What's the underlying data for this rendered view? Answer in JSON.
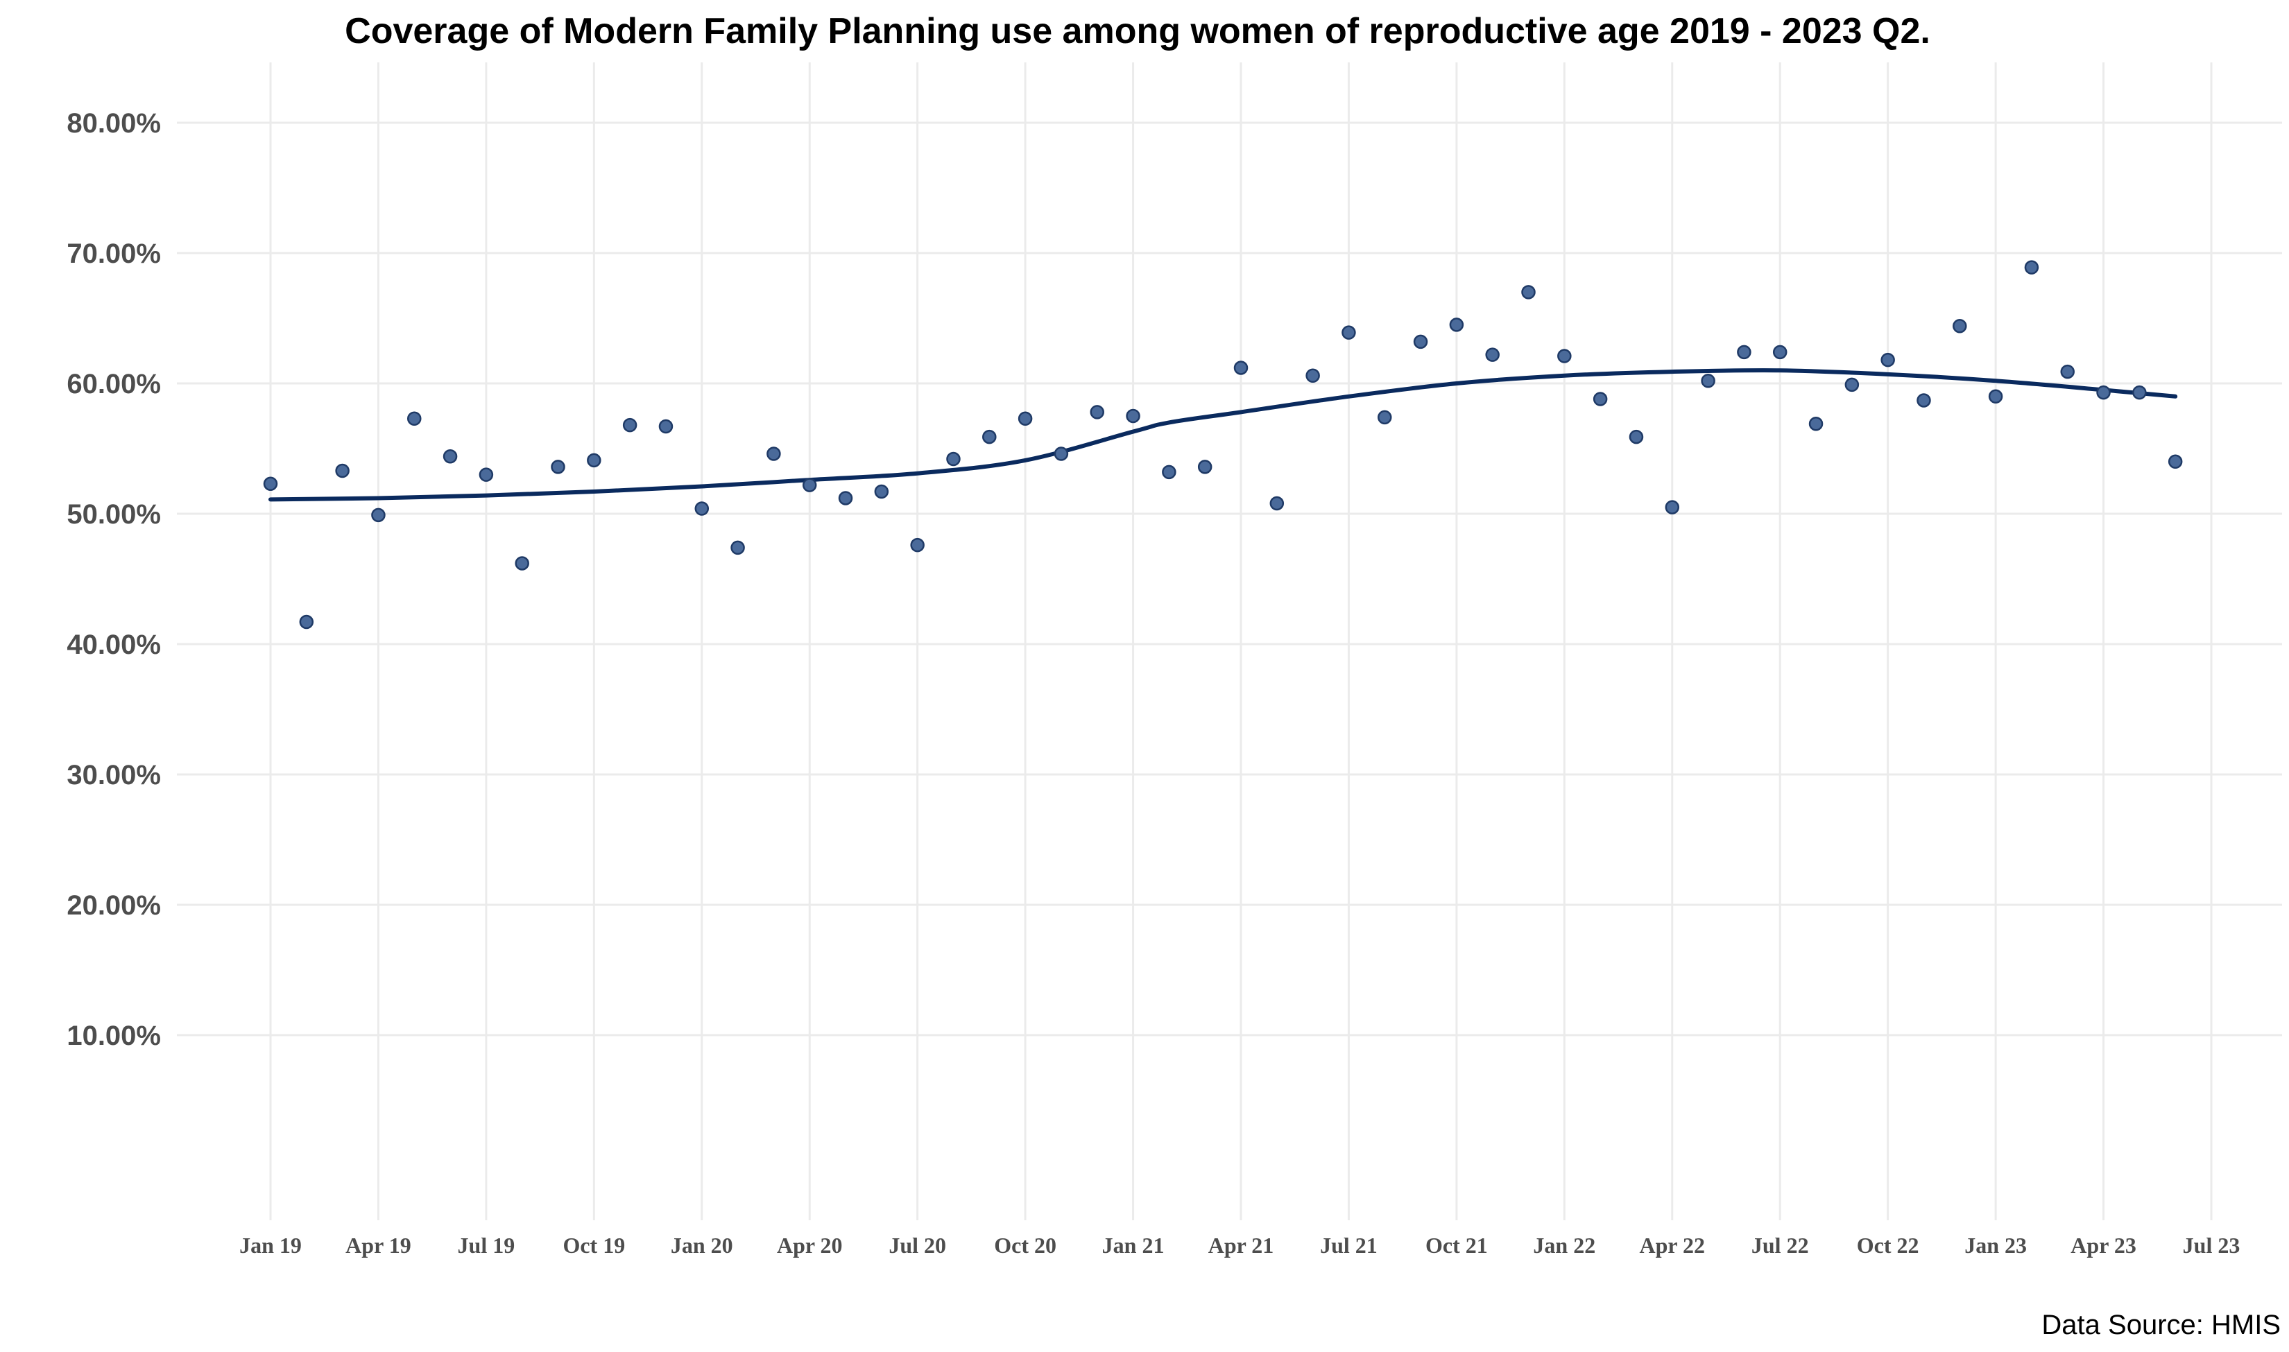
{
  "chart_data": {
    "type": "scatter",
    "title": "Coverage of Modern Family Planning use among women of reproductive age 2019 - 2023 Q2.",
    "caption": "Data Source: HMIS",
    "xlabel": "",
    "ylabel": "",
    "ylim": [
      0.0,
      0.83
    ],
    "y_ticks": [
      0.1,
      0.2,
      0.3,
      0.4,
      0.5,
      0.6,
      0.7,
      0.8
    ],
    "y_tick_labels": [
      "10.00%",
      "20.00%",
      "30.00%",
      "40.00%",
      "50.00%",
      "60.00%",
      "70.00%",
      "80.00%"
    ],
    "x_ticks": [
      "2019-01",
      "2019-04",
      "2019-07",
      "2019-10",
      "2020-01",
      "2020-04",
      "2020-07",
      "2020-10",
      "2021-01",
      "2021-04",
      "2021-07",
      "2021-10",
      "2022-01",
      "2022-04",
      "2022-07",
      "2022-10",
      "2023-01",
      "2023-04",
      "2023-07"
    ],
    "x_tick_labels": [
      "Jan 19",
      "Apr 19",
      "Jul 19",
      "Oct 19",
      "Jan 20",
      "Apr 20",
      "Jul 20",
      "Oct 20",
      "Jan 21",
      "Apr 21",
      "Jul 21",
      "Oct 21",
      "Jan 22",
      "Apr 22",
      "Jul 22",
      "Oct 22",
      "Jan 23",
      "Apr 23",
      "Jul 23"
    ],
    "grid": true,
    "legend": "none",
    "colors": {
      "points": "#4a6a9a",
      "point_stroke": "#1f3a66",
      "trend": "#0a2a5e",
      "grid": "#ebebeb"
    },
    "series": [
      {
        "kind": "points",
        "x": [
          "2019-01",
          "2019-02",
          "2019-03",
          "2019-04",
          "2019-05",
          "2019-06",
          "2019-07",
          "2019-08",
          "2019-09",
          "2019-10",
          "2019-11",
          "2019-12",
          "2020-01",
          "2020-02",
          "2020-03",
          "2020-04",
          "2020-05",
          "2020-06",
          "2020-07",
          "2020-08",
          "2020-09",
          "2020-10",
          "2020-11",
          "2020-12",
          "2021-01",
          "2021-02",
          "2021-03",
          "2021-04",
          "2021-05",
          "2021-06",
          "2021-07",
          "2021-08",
          "2021-09",
          "2021-10",
          "2021-11",
          "2021-12",
          "2022-01",
          "2022-02",
          "2022-03",
          "2022-04",
          "2022-05",
          "2022-06",
          "2022-07",
          "2022-08",
          "2022-09",
          "2022-10",
          "2022-11",
          "2022-12",
          "2023-01",
          "2023-02",
          "2023-03",
          "2023-04",
          "2023-05",
          "2023-06"
        ],
        "values": [
          0.523,
          0.417,
          0.533,
          0.499,
          0.573,
          0.544,
          0.53,
          0.462,
          0.536,
          0.541,
          0.568,
          0.567,
          0.504,
          0.474,
          0.546,
          0.522,
          0.512,
          0.517,
          0.476,
          0.542,
          0.559,
          0.573,
          0.546,
          0.578,
          0.575,
          0.532,
          0.536,
          0.612,
          0.508,
          0.606,
          0.639,
          0.574,
          0.632,
          0.645,
          0.622,
          0.67,
          0.621,
          0.588,
          0.559,
          0.505,
          0.602,
          0.624,
          0.624,
          0.569,
          0.599,
          0.618,
          0.587,
          0.644,
          0.59,
          0.689,
          0.609,
          0.593,
          0.593,
          0.54
        ]
      },
      {
        "kind": "trend",
        "x": [
          "2019-01",
          "2019-04",
          "2019-07",
          "2019-10",
          "2020-01",
          "2020-04",
          "2020-07",
          "2020-10",
          "2021-01",
          "2021-02",
          "2021-04",
          "2021-07",
          "2021-10",
          "2022-01",
          "2022-04",
          "2022-07",
          "2022-10",
          "2023-01",
          "2023-04",
          "2023-06"
        ],
        "values": [
          0.511,
          0.512,
          0.514,
          0.517,
          0.521,
          0.526,
          0.531,
          0.541,
          0.563,
          0.57,
          0.578,
          0.59,
          0.6,
          0.606,
          0.609,
          0.61,
          0.607,
          0.602,
          0.595,
          0.59
        ]
      }
    ]
  }
}
